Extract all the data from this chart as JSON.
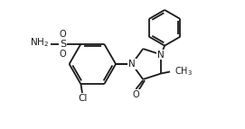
{
  "background_color": "#ffffff",
  "line_color": "#1a1a1a",
  "line_width": 1.3,
  "font_size": 7.5,
  "dpi": 100,
  "fig_w": 2.71,
  "fig_h": 1.43,
  "xlim": [
    0,
    271
  ],
  "ylim": [
    0,
    143
  ]
}
